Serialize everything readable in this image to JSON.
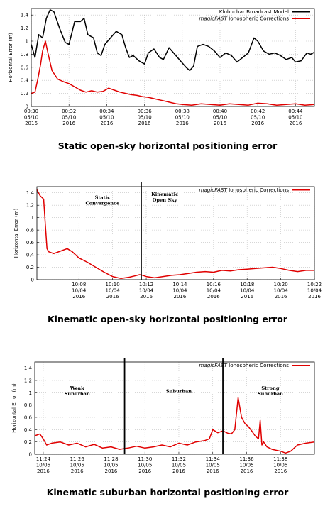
{
  "chart_data": [
    {
      "type": "line",
      "caption": "Static open-sky horizontal positioning error",
      "ylabel": "Horizontal Error (m)",
      "ylim": [
        0,
        1.5
      ],
      "yticks": [
        0,
        0.2,
        0.4,
        0.6,
        0.8,
        1,
        1.2,
        1.4
      ],
      "ytick_labels": [
        "0",
        "0.2",
        "0.4",
        "0.6",
        "0.8",
        "1",
        "1.2",
        "1.4"
      ],
      "xlim": [
        0,
        15
      ],
      "xticks": [
        0,
        2,
        4,
        6,
        8,
        10,
        12,
        14
      ],
      "xtick_labels": [
        [
          "00:30",
          "05/10",
          "2016"
        ],
        [
          "00:32",
          "05/10",
          "2016"
        ],
        [
          "00:34",
          "05/10",
          "2016"
        ],
        [
          "00:36",
          "05/10",
          "2016"
        ],
        [
          "00:38",
          "05/10",
          "2016"
        ],
        [
          "00:40",
          "05/10",
          "2016"
        ],
        [
          "00:42",
          "05/10",
          "2016"
        ],
        [
          "00:44",
          "05/10",
          "2016"
        ]
      ],
      "grid": true,
      "legend": "top-right",
      "series": [
        {
          "name": "Klobuchar Broadcast Model",
          "name_prefix": "",
          "name_suffix": "Klobuchar Broadcast Model",
          "color": "#000000",
          "x": [
            0,
            0.2,
            0.4,
            0.6,
            0.8,
            1.0,
            1.2,
            1.5,
            1.8,
            2.0,
            2.3,
            2.6,
            2.8,
            3.0,
            3.3,
            3.5,
            3.7,
            3.9,
            4.2,
            4.5,
            4.8,
            5.0,
            5.2,
            5.4,
            5.7,
            6.0,
            6.2,
            6.5,
            6.8,
            7.0,
            7.3,
            7.6,
            7.9,
            8.2,
            8.4,
            8.6,
            8.8,
            9.1,
            9.4,
            9.7,
            10.0,
            10.3,
            10.6,
            10.9,
            11.2,
            11.5,
            11.8,
            12.0,
            12.3,
            12.6,
            12.9,
            13.2,
            13.5,
            13.8,
            14.0,
            14.3,
            14.6,
            14.8,
            15.0
          ],
          "y": [
            0.95,
            0.75,
            1.1,
            1.05,
            1.35,
            1.48,
            1.45,
            1.2,
            0.98,
            0.95,
            1.3,
            1.3,
            1.35,
            1.1,
            1.05,
            0.82,
            0.78,
            0.95,
            1.05,
            1.15,
            1.1,
            0.9,
            0.75,
            0.78,
            0.7,
            0.65,
            0.82,
            0.88,
            0.75,
            0.72,
            0.9,
            0.8,
            0.7,
            0.6,
            0.55,
            0.62,
            0.92,
            0.95,
            0.92,
            0.85,
            0.75,
            0.82,
            0.78,
            0.68,
            0.75,
            0.82,
            1.05,
            1.0,
            0.85,
            0.8,
            0.82,
            0.78,
            0.72,
            0.75,
            0.68,
            0.7,
            0.82,
            0.8,
            0.83
          ]
        },
        {
          "name": "magicFAST Ionospheric Corrections",
          "name_prefix": "magicFAST",
          "name_suffix": " Ionospheric Corrections",
          "color": "#e00000",
          "x": [
            0,
            0.2,
            0.35,
            0.5,
            0.6,
            0.75,
            0.9,
            1.1,
            1.4,
            1.7,
            2.0,
            2.3,
            2.6,
            2.9,
            3.2,
            3.5,
            3.8,
            4.1,
            4.4,
            4.7,
            5.0,
            5.3,
            5.6,
            5.9,
            6.2,
            6.5,
            6.8,
            7.1,
            7.4,
            7.7,
            8.0,
            8.5,
            9.0,
            9.5,
            10.0,
            10.5,
            11.0,
            11.5,
            12.0,
            12.5,
            13.0,
            13.5,
            14.0,
            14.5,
            15.0
          ],
          "y": [
            0.2,
            0.22,
            0.42,
            0.65,
            0.85,
            1.0,
            0.8,
            0.55,
            0.42,
            0.38,
            0.35,
            0.3,
            0.25,
            0.22,
            0.24,
            0.22,
            0.23,
            0.28,
            0.25,
            0.22,
            0.2,
            0.18,
            0.17,
            0.15,
            0.14,
            0.12,
            0.1,
            0.08,
            0.06,
            0.04,
            0.03,
            0.02,
            0.04,
            0.03,
            0.02,
            0.04,
            0.03,
            0.02,
            0.05,
            0.04,
            0.02,
            0.03,
            0.04,
            0.02,
            0.03
          ]
        }
      ],
      "vlines": [],
      "annotations": []
    },
    {
      "type": "line",
      "caption": "Kinematic open-sky horizontal positioning error",
      "ylabel": "Horizontal Error (m)",
      "ylim": [
        0,
        1.5
      ],
      "yticks": [
        0,
        0.2,
        0.4,
        0.6,
        0.8,
        1,
        1.2,
        1.4
      ],
      "ytick_labels": [
        "0",
        "0.2",
        "0.4",
        "0.6",
        "0.8",
        "1",
        "1.2",
        "1.4"
      ],
      "xlim": [
        5.5,
        22
      ],
      "xticks": [
        8,
        10,
        12,
        14,
        16,
        18,
        20,
        22
      ],
      "xtick_labels": [
        [
          "10:08",
          "10/04",
          "2016"
        ],
        [
          "10:10",
          "10/04",
          "2016"
        ],
        [
          "10:12",
          "10/04",
          "2016"
        ],
        [
          "10:14",
          "10/04",
          "2016"
        ],
        [
          "10:16",
          "10/04",
          "2016"
        ],
        [
          "10:18",
          "10/04",
          "2016"
        ],
        [
          "10:20",
          "10/04",
          "2016"
        ],
        [
          "10:22",
          "10/04",
          "2016"
        ]
      ],
      "grid": true,
      "legend": "top-right",
      "series": [
        {
          "name": "magicFAST Ionospheric Corrections",
          "name_prefix": "magicFAST",
          "name_suffix": " Ionospheric Corrections",
          "color": "#e00000",
          "x": [
            5.5,
            5.7,
            5.9,
            6.0,
            6.1,
            6.2,
            6.5,
            7.0,
            7.3,
            7.6,
            8.0,
            8.5,
            9.0,
            9.5,
            10.0,
            10.5,
            11.0,
            11.3,
            11.6,
            11.8,
            12.0,
            12.5,
            13.0,
            13.5,
            14.0,
            14.5,
            15.0,
            15.5,
            16.0,
            16.5,
            17.0,
            17.5,
            18.0,
            18.5,
            19.0,
            19.5,
            20.0,
            20.5,
            21.0,
            21.5,
            22.0
          ],
          "y": [
            1.45,
            1.35,
            1.3,
            0.9,
            0.5,
            0.45,
            0.42,
            0.47,
            0.5,
            0.45,
            0.35,
            0.28,
            0.2,
            0.12,
            0.05,
            0.02,
            0.04,
            0.06,
            0.08,
            0.07,
            0.05,
            0.03,
            0.05,
            0.07,
            0.08,
            0.1,
            0.12,
            0.13,
            0.12,
            0.15,
            0.14,
            0.16,
            0.17,
            0.18,
            0.19,
            0.2,
            0.18,
            0.15,
            0.13,
            0.15,
            0.15
          ]
        }
      ],
      "vlines": [
        11.7
      ],
      "annotations": [
        {
          "text": [
            "Static",
            "Convergence"
          ],
          "x": 9.4,
          "y": 1.3
        },
        {
          "text": [
            "Kinematic",
            "Open Sky"
          ],
          "x": 13.1,
          "y": 1.35
        }
      ]
    },
    {
      "type": "line",
      "caption": "Kinematic suburban horizontal positioning error",
      "ylabel": "Horizontal Error (m)",
      "ylim": [
        0,
        1.5
      ],
      "yticks": [
        0,
        0.2,
        0.4,
        0.6,
        0.8,
        1,
        1.2,
        1.4
      ],
      "ytick_labels": [
        "0",
        "0.2",
        "0.4",
        "0.6",
        "0.8",
        "1",
        "1.2",
        "1.4"
      ],
      "xlim": [
        23.5,
        40
      ],
      "xticks": [
        24,
        26,
        28,
        30,
        32,
        34,
        36,
        38
      ],
      "xtick_labels": [
        [
          "11:24",
          "10/05",
          "2016"
        ],
        [
          "11:26",
          "10/05",
          "2016"
        ],
        [
          "11:28",
          "10/05",
          "2016"
        ],
        [
          "11:30",
          "10/05",
          "2016"
        ],
        [
          "11:32",
          "10/05",
          "2016"
        ],
        [
          "11:34",
          "10/05",
          "2016"
        ],
        [
          "11:36",
          "10/05",
          "2016"
        ],
        [
          "11:38",
          "10/05",
          "2016"
        ]
      ],
      "grid": true,
      "legend": "top-right",
      "series": [
        {
          "name": "magicFAST Ionospheric Corrections",
          "name_prefix": "magicFAST",
          "name_suffix": " Ionospheric Corrections",
          "color": "#e00000",
          "x": [
            23.5,
            23.8,
            24.0,
            24.2,
            24.5,
            25.0,
            25.5,
            26.0,
            26.5,
            27.0,
            27.5,
            28.0,
            28.5,
            29.0,
            29.5,
            30.0,
            30.5,
            31.0,
            31.5,
            32.0,
            32.5,
            33.0,
            33.5,
            33.8,
            34.0,
            34.3,
            34.6,
            34.9,
            35.1,
            35.3,
            35.5,
            35.7,
            35.9,
            36.1,
            36.3,
            36.5,
            36.7,
            36.8,
            36.9,
            37.0,
            37.2,
            37.5,
            38.0,
            38.3,
            38.6,
            39.0,
            39.5,
            40.0
          ],
          "y": [
            0.3,
            0.33,
            0.25,
            0.15,
            0.18,
            0.2,
            0.15,
            0.18,
            0.12,
            0.16,
            0.1,
            0.12,
            0.08,
            0.1,
            0.13,
            0.1,
            0.12,
            0.15,
            0.12,
            0.18,
            0.15,
            0.2,
            0.22,
            0.25,
            0.4,
            0.35,
            0.38,
            0.34,
            0.33,
            0.4,
            0.92,
            0.6,
            0.5,
            0.45,
            0.38,
            0.3,
            0.25,
            0.55,
            0.15,
            0.2,
            0.12,
            0.08,
            0.05,
            0.02,
            0.05,
            0.15,
            0.18,
            0.2
          ]
        }
      ],
      "vlines": [
        28.8,
        34.6
      ],
      "annotations": [
        {
          "text": [
            "Weak",
            "Suburban"
          ],
          "x": 26.0,
          "y": 1.05
        },
        {
          "text": [
            "Suburban"
          ],
          "x": 32.0,
          "y": 1.0
        },
        {
          "text": [
            "Strong",
            "Suburban"
          ],
          "x": 37.4,
          "y": 1.05
        }
      ]
    }
  ]
}
